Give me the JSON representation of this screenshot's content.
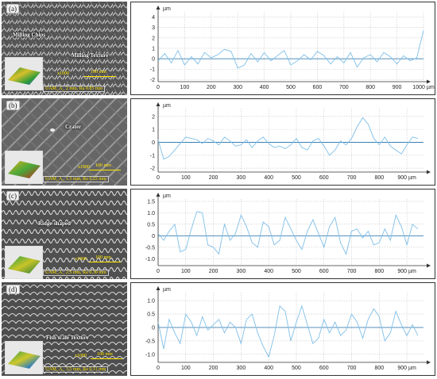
{
  "panels": [
    {
      "label": "(a)",
      "annotations": [
        "Milling Chips",
        "Milling Texture"
      ],
      "magnification": "x1000",
      "scale_bar": "100 mm",
      "caption": "UAM_A_ 2 mm, Ra 0.85 mm"
    },
    {
      "label": "(b)",
      "annotations": [
        "Crater"
      ],
      "magnification": "x1000",
      "scale_bar": "100 mm",
      "caption": "UAM_A_ 1.5 mm, Ra 0.22 mm"
    },
    {
      "label": "(c)",
      "annotations": [
        "Ridge-shaped"
      ],
      "magnification": "x1000",
      "scale_bar": "100 mm",
      "caption": "UAM_A_ 2.5 mm, Ra 0.30 mm"
    },
    {
      "label": "(d)",
      "annotations": [
        "Fish scale Texture"
      ],
      "magnification": "x1000",
      "scale_bar": "100 mm",
      "caption": "UAM_A_ 3.5 mm, Ra 0.11 mm"
    }
  ],
  "colors": {
    "line": "#7fbfe8",
    "baseline": "#1f6fa8",
    "grid": "#c8c8c8",
    "axis": "#333333"
  },
  "chart_data": [
    {
      "type": "line",
      "y_unit": "µm",
      "x_unit": "µm",
      "xlim": [
        0,
        1000
      ],
      "ylim": [
        -2.2,
        4.5
      ],
      "x_ticks": [
        0,
        100,
        200,
        300,
        400,
        500,
        600,
        700,
        800,
        900,
        1000
      ],
      "x_tick_labels": [
        "0",
        "100",
        "200",
        "300",
        "400",
        "500",
        "600",
        "700",
        "800",
        "900",
        "1000 µm"
      ],
      "y_ticks": [
        4,
        3,
        2,
        1,
        0,
        -1,
        -2
      ],
      "grid": true,
      "series": [
        {
          "x": [
            0,
            25,
            50,
            75,
            100,
            125,
            150,
            175,
            200,
            225,
            250,
            275,
            300,
            325,
            350,
            375,
            400,
            425,
            450,
            475,
            500,
            525,
            550,
            575,
            600,
            625,
            650,
            675,
            700,
            725,
            750,
            775,
            800,
            825,
            850,
            875,
            900,
            925,
            950,
            975,
            1000
          ],
          "y": [
            -0.2,
            0.5,
            -0.4,
            0.8,
            -0.6,
            0.2,
            -0.5,
            0.6,
            0.1,
            0.4,
            0.9,
            0.7,
            -0.9,
            -0.6,
            0.5,
            -0.3,
            0.6,
            -0.2,
            0.3,
            0.8,
            -0.6,
            -0.2,
            0.4,
            -0.1,
            0.7,
            0.3,
            -0.5,
            0.2,
            -0.4,
            0.6,
            -0.8,
            0.1,
            0.4,
            -0.3,
            0.6,
            0.2,
            -0.5,
            0.3,
            -0.2,
            0.1,
            2.7
          ]
        }
      ]
    },
    {
      "type": "line",
      "y_unit": "µm",
      "x_unit": "µm",
      "xlim": [
        0,
        960
      ],
      "ylim": [
        -2.3,
        2.6
      ],
      "x_ticks": [
        0,
        100,
        200,
        300,
        400,
        500,
        600,
        700,
        800,
        900
      ],
      "x_tick_labels": [
        "0",
        "100",
        "200",
        "300",
        "400",
        "500",
        "600",
        "700",
        "800",
        "900 µm"
      ],
      "y_ticks": [
        2,
        1,
        0,
        -1,
        -2
      ],
      "grid": true,
      "series": [
        {
          "x": [
            0,
            20,
            40,
            60,
            80,
            100,
            120,
            140,
            160,
            180,
            200,
            220,
            240,
            260,
            280,
            300,
            320,
            340,
            360,
            380,
            400,
            420,
            440,
            460,
            480,
            500,
            520,
            540,
            560,
            580,
            600,
            620,
            640,
            660,
            680,
            700,
            720,
            740,
            760,
            780,
            800,
            820,
            840,
            860,
            880,
            900,
            920,
            940
          ],
          "y": [
            0.2,
            -1.3,
            -1.1,
            -0.6,
            -0.1,
            0.4,
            0.3,
            0.2,
            -0.1,
            0.3,
            0.1,
            -0.2,
            0.4,
            0.1,
            -0.3,
            -0.2,
            0.2,
            -0.4,
            0.1,
            0.4,
            -0.1,
            -0.4,
            -0.3,
            -0.5,
            -0.2,
            0.3,
            -0.4,
            -0.6,
            0.1,
            0.3,
            -0.3,
            -1.0,
            -0.6,
            0.1,
            -0.2,
            0.3,
            1.2,
            1.9,
            1.4,
            0.3,
            -0.2,
            0.4,
            -0.3,
            -0.6,
            -0.9,
            -0.2,
            0.4,
            0.3
          ]
        }
      ]
    },
    {
      "type": "line",
      "y_unit": "µm",
      "x_unit": "µm",
      "xlim": [
        0,
        960
      ],
      "ylim": [
        -1.3,
        1.6
      ],
      "x_ticks": [
        0,
        100,
        200,
        300,
        400,
        500,
        600,
        700,
        800,
        900
      ],
      "x_tick_labels": [
        "0",
        "100",
        "200",
        "300",
        "400",
        "500",
        "600",
        "700",
        "800",
        "900 µm"
      ],
      "y_ticks": [
        1.5,
        1.0,
        0.5,
        0,
        -0.5,
        -1.0
      ],
      "y_tick_labels": [
        "1.5",
        "1.0",
        "0.5",
        "0",
        "-0.5",
        "-1.0"
      ],
      "grid": true,
      "series": [
        {
          "x": [
            0,
            20,
            40,
            60,
            80,
            100,
            120,
            140,
            160,
            180,
            200,
            220,
            240,
            260,
            280,
            300,
            320,
            340,
            360,
            380,
            400,
            420,
            440,
            460,
            480,
            500,
            520,
            540,
            560,
            580,
            600,
            620,
            640,
            660,
            680,
            700,
            720,
            740,
            760,
            780,
            800,
            820,
            840,
            860,
            880,
            900,
            920,
            940
          ],
          "y": [
            0.1,
            -0.2,
            0.2,
            0.5,
            -0.7,
            -0.6,
            0.3,
            1.05,
            1.0,
            -0.4,
            -0.5,
            -0.8,
            0.5,
            -0.2,
            0.1,
            0.9,
            0.4,
            -0.3,
            -0.5,
            0.6,
            0.4,
            -0.4,
            -0.2,
            0.8,
            0.3,
            -0.2,
            -0.6,
            0.2,
            0.7,
            0.1,
            -0.5,
            0.4,
            0.8,
            -0.3,
            -0.8,
            0.2,
            0.3,
            -0.1,
            0.2,
            -0.4,
            -0.3,
            0.3,
            -0.2,
            0.9,
            0.4,
            -0.4,
            0.5,
            0.3
          ]
        }
      ]
    },
    {
      "type": "line",
      "y_unit": "µm",
      "x_unit": "µm",
      "xlim": [
        0,
        960
      ],
      "ylim": [
        -1.3,
        1.3
      ],
      "x_ticks": [
        0,
        100,
        200,
        300,
        400,
        500,
        600,
        700,
        800,
        900
      ],
      "x_tick_labels": [
        "0",
        "100",
        "200",
        "300",
        "400",
        "500",
        "600",
        "700",
        "800",
        "900 µm"
      ],
      "y_ticks": [
        1.0,
        0.5,
        0,
        -0.5,
        -1.0
      ],
      "y_tick_labels": [
        "1.0",
        "0.5",
        "0",
        "-0.5",
        "-1.0"
      ],
      "grid": true,
      "series": [
        {
          "x": [
            0,
            20,
            40,
            60,
            80,
            100,
            120,
            140,
            160,
            180,
            200,
            220,
            240,
            260,
            280,
            300,
            320,
            340,
            360,
            380,
            400,
            420,
            440,
            460,
            480,
            500,
            520,
            540,
            560,
            580,
            600,
            620,
            640,
            660,
            680,
            700,
            720,
            740,
            760,
            780,
            800,
            820,
            840,
            860,
            880,
            900,
            920,
            940
          ],
          "y": [
            0.2,
            -0.8,
            0.3,
            -0.2,
            -0.6,
            0.5,
            0.2,
            -0.3,
            0.4,
            -0.1,
            0.1,
            0.3,
            -0.2,
            0.2,
            0.0,
            -0.6,
            0.3,
            0.5,
            -0.2,
            -0.7,
            -1.1,
            -0.3,
            0.8,
            0.6,
            -0.5,
            0.2,
            0.8,
            0.1,
            -0.6,
            -0.4,
            0.3,
            -0.2,
            0.2,
            -0.3,
            -0.1,
            0.5,
            0.2,
            -0.4,
            0.3,
            0.7,
            0.4,
            -0.5,
            -0.2,
            0.6,
            0.1,
            -0.3,
            0.1,
            -0.3
          ]
        }
      ]
    }
  ]
}
